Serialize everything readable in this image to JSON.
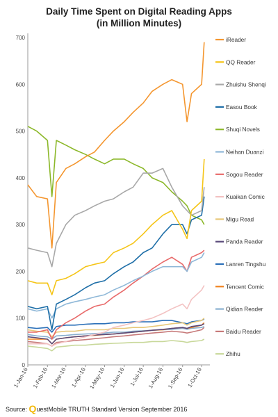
{
  "chart_data": {
    "type": "line",
    "title_line1": "Daily Time Spent on Digital Reading Apps",
    "title_line2": "(in Million Minutes)",
    "ylim": [
      0,
      700
    ],
    "yticks": [
      0,
      100,
      200,
      300,
      400,
      500,
      600,
      700
    ],
    "xticks": [
      "1-Jan-16",
      "1-Feb-16",
      "1-Mar-16",
      "1-Apr-16",
      "1-May-16",
      "1-Jun-16",
      "1-Jul-16",
      "1-Aug-16",
      "1-Sep-16",
      "1-Oct-16"
    ],
    "x": [
      "2016-01-01",
      "2016-01-15",
      "2016-02-01",
      "2016-02-08",
      "2016-02-15",
      "2016-03-01",
      "2016-03-15",
      "2016-04-01",
      "2016-04-15",
      "2016-05-01",
      "2016-05-15",
      "2016-06-01",
      "2016-06-15",
      "2016-07-01",
      "2016-07-15",
      "2016-08-01",
      "2016-08-15",
      "2016-09-01",
      "2016-09-08",
      "2016-09-15",
      "2016-10-01",
      "2016-10-05"
    ],
    "grid": false,
    "legend_position": "right",
    "series": [
      {
        "name": "iReader",
        "color": "#f4962f",
        "values": [
          385,
          360,
          355,
          250,
          390,
          420,
          430,
          445,
          455,
          480,
          500,
          520,
          540,
          560,
          585,
          600,
          610,
          600,
          520,
          580,
          600,
          690
        ]
      },
      {
        "name": "QQ Reader",
        "color": "#f5c518",
        "values": [
          180,
          175,
          175,
          150,
          180,
          185,
          195,
          210,
          215,
          220,
          240,
          250,
          260,
          280,
          300,
          320,
          330,
          290,
          270,
          330,
          350,
          440
        ]
      },
      {
        "name": "Zhuishu Shenqi",
        "color": "#a8a8a8",
        "values": [
          250,
          245,
          240,
          210,
          260,
          300,
          320,
          330,
          340,
          350,
          355,
          370,
          380,
          410,
          410,
          420,
          380,
          340,
          330,
          320,
          330,
          380
        ]
      },
      {
        "name": "Easou Book",
        "color": "#1f6fa8",
        "values": [
          125,
          120,
          125,
          75,
          130,
          140,
          150,
          165,
          175,
          180,
          195,
          210,
          220,
          240,
          250,
          280,
          300,
          300,
          280,
          310,
          320,
          360
        ]
      },
      {
        "name": "Shuqi Novels",
        "color": "#8cb82a",
        "values": [
          510,
          500,
          480,
          360,
          480,
          470,
          460,
          450,
          440,
          430,
          440,
          440,
          430,
          420,
          400,
          390,
          370,
          350,
          340,
          320,
          310,
          300
        ]
      },
      {
        "name": "Neihan Duanzi",
        "color": "#8fb8d8",
        "values": [
          120,
          115,
          120,
          100,
          120,
          130,
          135,
          140,
          145,
          150,
          160,
          170,
          180,
          190,
          200,
          210,
          210,
          210,
          200,
          220,
          230,
          240
        ]
      },
      {
        "name": "Sogou Reader",
        "color": "#e86a6a",
        "values": [
          70,
          70,
          75,
          55,
          75,
          90,
          100,
          115,
          125,
          130,
          145,
          160,
          175,
          190,
          205,
          220,
          230,
          215,
          200,
          230,
          240,
          245
        ]
      },
      {
        "name": "Kuaikan Comic",
        "color": "#f3c2c2",
        "values": [
          45,
          45,
          45,
          40,
          45,
          50,
          55,
          60,
          65,
          70,
          80,
          85,
          90,
          95,
          100,
          110,
          120,
          130,
          120,
          140,
          160,
          170
        ]
      },
      {
        "name": "Migu Read",
        "color": "#e8c87a",
        "values": [
          75,
          72,
          70,
          60,
          70,
          72,
          72,
          75,
          75,
          75,
          78,
          78,
          80,
          80,
          82,
          85,
          88,
          90,
          85,
          90,
          95,
          100
        ]
      },
      {
        "name": "Panda Reader",
        "color": "#5a4a7a",
        "values": [
          60,
          58,
          55,
          45,
          55,
          58,
          60,
          62,
          64,
          65,
          66,
          68,
          70,
          72,
          74,
          76,
          78,
          80,
          78,
          82,
          85,
          88
        ]
      },
      {
        "name": "Lanren Tingshu",
        "color": "#2a6fb8",
        "values": [
          80,
          78,
          80,
          70,
          82,
          85,
          85,
          87,
          88,
          88,
          90,
          90,
          92,
          92,
          92,
          95,
          95,
          90,
          88,
          92,
          95,
          98
        ]
      },
      {
        "name": "Tencent Comic",
        "color": "#f0821e",
        "values": [
          55,
          55,
          55,
          45,
          55,
          58,
          60,
          62,
          63,
          65,
          66,
          68,
          70,
          72,
          74,
          75,
          78,
          80,
          78,
          80,
          85,
          90
        ]
      },
      {
        "name": "Qidian Reader",
        "color": "#8ab0d0",
        "values": [
          65,
          62,
          60,
          55,
          62,
          63,
          65,
          66,
          67,
          68,
          70,
          70,
          72,
          73,
          74,
          75,
          76,
          78,
          76,
          78,
          80,
          82
        ]
      },
      {
        "name": "Baidu Reader",
        "color": "#c77a7a",
        "values": [
          50,
          48,
          45,
          40,
          48,
          50,
          52,
          54,
          56,
          58,
          60,
          62,
          64,
          66,
          68,
          70,
          72,
          70,
          68,
          70,
          75,
          80
        ]
      },
      {
        "name": "Zhihu",
        "color": "#c8d89a",
        "values": [
          40,
          38,
          35,
          30,
          38,
          40,
          42,
          42,
          44,
          45,
          46,
          47,
          48,
          48,
          50,
          50,
          52,
          50,
          48,
          50,
          52,
          55
        ]
      }
    ]
  },
  "footer": {
    "prefix": "Source: ",
    "brand_q": "Q",
    "brand_rest": "uestMobile TRUTH Standard Version September 2016"
  }
}
